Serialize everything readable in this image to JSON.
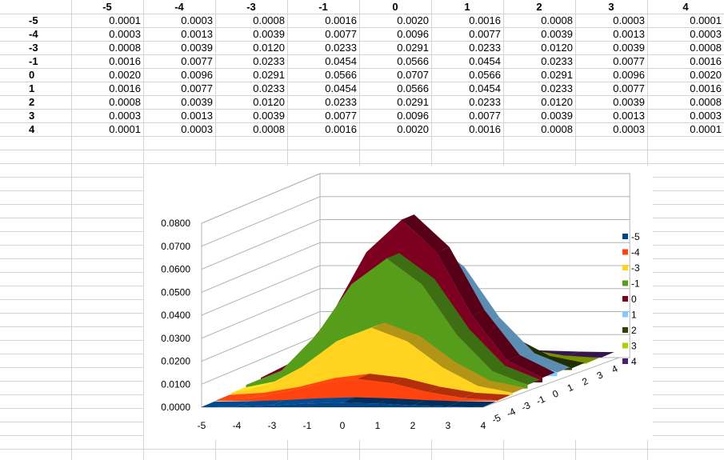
{
  "sheet": {
    "col_headers": [
      "-5",
      "-4",
      "-3",
      "-1",
      "0",
      "1",
      "2",
      "3",
      "4"
    ],
    "rows": [
      {
        "label": "-5",
        "values": [
          "0.0001",
          "0.0003",
          "0.0008",
          "0.0016",
          "0.0020",
          "0.0016",
          "0.0008",
          "0.0003",
          "0.0001"
        ]
      },
      {
        "label": "-4",
        "values": [
          "0.0003",
          "0.0013",
          "0.0039",
          "0.0077",
          "0.0096",
          "0.0077",
          "0.0039",
          "0.0013",
          "0.0003"
        ]
      },
      {
        "label": "-3",
        "values": [
          "0.0008",
          "0.0039",
          "0.0120",
          "0.0233",
          "0.0291",
          "0.0233",
          "0.0120",
          "0.0039",
          "0.0008"
        ]
      },
      {
        "label": "-1",
        "values": [
          "0.0016",
          "0.0077",
          "0.0233",
          "0.0454",
          "0.0566",
          "0.0454",
          "0.0233",
          "0.0077",
          "0.0016"
        ]
      },
      {
        "label": "0",
        "values": [
          "0.0020",
          "0.0096",
          "0.0291",
          "0.0566",
          "0.0707",
          "0.0566",
          "0.0291",
          "0.0096",
          "0.0020"
        ]
      },
      {
        "label": "1",
        "values": [
          "0.0016",
          "0.0077",
          "0.0233",
          "0.0454",
          "0.0566",
          "0.0454",
          "0.0233",
          "0.0077",
          "0.0016"
        ]
      },
      {
        "label": "2",
        "values": [
          "0.0008",
          "0.0039",
          "0.0120",
          "0.0233",
          "0.0291",
          "0.0233",
          "0.0120",
          "0.0039",
          "0.0008"
        ]
      },
      {
        "label": "3",
        "values": [
          "0.0003",
          "0.0013",
          "0.0039",
          "0.0077",
          "0.0096",
          "0.0077",
          "0.0039",
          "0.0013",
          "0.0003"
        ]
      },
      {
        "label": "4",
        "values": [
          "0.0001",
          "0.0003",
          "0.0008",
          "0.0016",
          "0.0020",
          "0.0016",
          "0.0008",
          "0.0003",
          "0.0001"
        ]
      }
    ]
  },
  "chart_data": {
    "type": "area",
    "subtype": "3d-stacked-depth",
    "title": "",
    "xlabel": "",
    "ylabel": "",
    "categories": [
      "-5",
      "-4",
      "-3",
      "-1",
      "0",
      "1",
      "2",
      "3",
      "4"
    ],
    "depth_labels": [
      "-5",
      "-4",
      "-3",
      "-1",
      "0",
      "1",
      "2",
      "3",
      "4"
    ],
    "y_ticks": [
      "0.0000",
      "0.0100",
      "0.0200",
      "0.0300",
      "0.0400",
      "0.0500",
      "0.0600",
      "0.0700",
      "0.0800"
    ],
    "ylim": [
      0,
      0.08
    ],
    "grid": true,
    "legend_position": "right",
    "series": [
      {
        "name": "-5",
        "color": "#004586",
        "values": [
          0.0001,
          0.0003,
          0.0008,
          0.0016,
          0.002,
          0.0016,
          0.0008,
          0.0003,
          0.0001
        ]
      },
      {
        "name": "-4",
        "color": "#ff420e",
        "values": [
          0.0003,
          0.0013,
          0.0039,
          0.0077,
          0.0096,
          0.0077,
          0.0039,
          0.0013,
          0.0003
        ]
      },
      {
        "name": "-3",
        "color": "#ffd320",
        "values": [
          0.0008,
          0.0039,
          0.012,
          0.0233,
          0.0291,
          0.0233,
          0.012,
          0.0039,
          0.0008
        ]
      },
      {
        "name": "-1",
        "color": "#579d1c",
        "values": [
          0.0016,
          0.0077,
          0.0233,
          0.0454,
          0.0566,
          0.0454,
          0.0233,
          0.0077,
          0.0016
        ]
      },
      {
        "name": "0",
        "color": "#7e0021",
        "values": [
          0.002,
          0.0096,
          0.0291,
          0.0566,
          0.0707,
          0.0566,
          0.0291,
          0.0096,
          0.002
        ]
      },
      {
        "name": "1",
        "color": "#83caff",
        "values": [
          0.0016,
          0.0077,
          0.0233,
          0.0454,
          0.0566,
          0.0454,
          0.0233,
          0.0077,
          0.0016
        ]
      },
      {
        "name": "2",
        "color": "#314004",
        "values": [
          0.0008,
          0.0039,
          0.012,
          0.0233,
          0.0291,
          0.0233,
          0.012,
          0.0039,
          0.0008
        ]
      },
      {
        "name": "3",
        "color": "#aecf00",
        "values": [
          0.0003,
          0.0013,
          0.0039,
          0.0077,
          0.0096,
          0.0077,
          0.0039,
          0.0013,
          0.0003
        ]
      },
      {
        "name": "4",
        "color": "#4b1f6f",
        "values": [
          0.0001,
          0.0003,
          0.0008,
          0.0016,
          0.002,
          0.0016,
          0.0008,
          0.0003,
          0.0001
        ]
      }
    ]
  }
}
